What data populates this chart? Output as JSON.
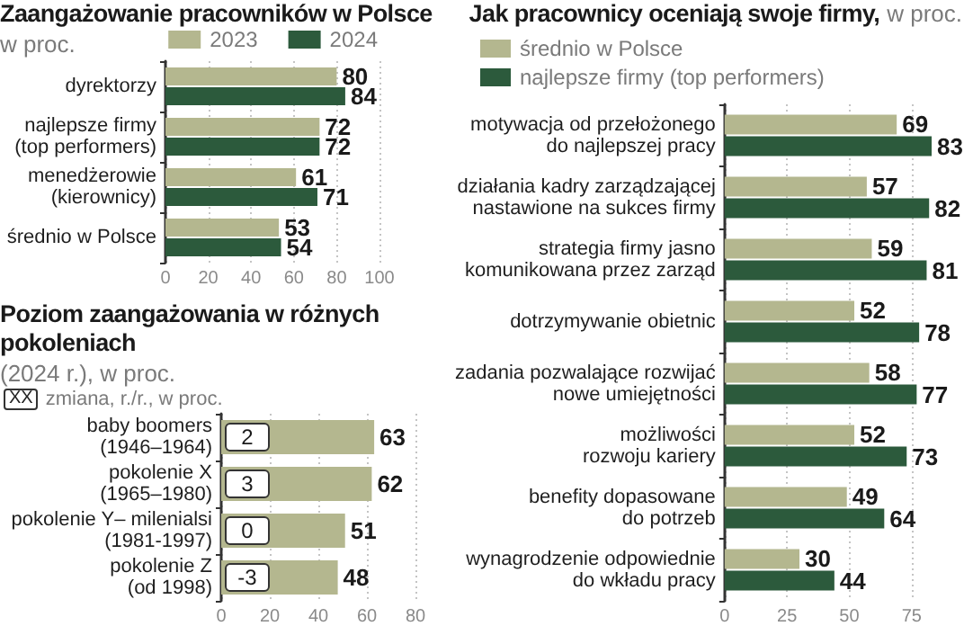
{
  "chart_data": [
    {
      "type": "bar",
      "orientation": "horizontal",
      "title": "Zaangażowanie pracowników w Polsce",
      "subtitle": "w proc.",
      "categories": [
        "dyrektorzy",
        "najlepsze firmy\n(top performers)",
        "menedżerowie\n(kierownicy)",
        "średnio w Polsce"
      ],
      "series": [
        {
          "name": "2023",
          "color": "#b4b78f",
          "values": [
            80,
            72,
            61,
            53
          ]
        },
        {
          "name": "2024",
          "color": "#2c5a3c",
          "values": [
            84,
            72,
            71,
            54
          ]
        }
      ],
      "xlim": [
        0,
        100
      ],
      "xticks": [
        0,
        20,
        40,
        60,
        80,
        100
      ],
      "grid": "x",
      "legend": "top right",
      "data_labels": true
    },
    {
      "type": "bar",
      "orientation": "horizontal",
      "title": "Poziom zaangażowania w różnych pokoleniach",
      "subtitle": "(2024 r.), w proc.",
      "categories": [
        "baby boomers\n(1946–1964)",
        "pokolenie X\n(1965–1980)",
        "pokolenie Y– milenialsi\n(1981-1997)",
        "pokolenie Z\n(od 1998)"
      ],
      "values": [
        63,
        62,
        51,
        48
      ],
      "color": "#b4b78f",
      "xlim": [
        0,
        80
      ],
      "xticks": [
        0,
        20,
        40,
        60,
        80
      ],
      "grid": "x",
      "data_labels": true,
      "annotations": [
        "XX",
        "zmiana, r./r., w proc.",
        {
          "text": "2",
          "y": "baby boomers\n(1946–1964)"
        },
        {
          "text": "3",
          "y": "pokolenie X\n(1965–1980)"
        },
        {
          "text": "0",
          "y": "pokolenie Y– milenialsi\n(1981-1997)"
        },
        {
          "text": "-3",
          "y": "pokolenie Z\n(od 1998)"
        }
      ]
    },
    {
      "type": "bar",
      "orientation": "horizontal",
      "title": "Jak pracownicy oceniają swoje firmy,",
      "subtitle": "w proc.",
      "categories": [
        "motywacja od przełożonego\ndo najlepszej pracy",
        "działania kadry zarządzającej\nnastawione na sukces firmy",
        "strategia firmy jasno\nkomunikowana przez zarząd",
        "dotrzymywanie obietnic",
        "zadania pozwalające rozwijać\nnowe umiejętności",
        "możliwości\nrozwoju kariery",
        "benefity dopasowane\ndo potrzeb",
        "wynagrodzenie odpowiednie\ndo wkładu pracy"
      ],
      "series": [
        {
          "name": "średnio w Polsce",
          "color": "#b4b78f",
          "values": [
            69,
            57,
            59,
            52,
            58,
            52,
            49,
            30
          ]
        },
        {
          "name": "najlepsze firmy (top performers)",
          "color": "#2c5a3c",
          "values": [
            83,
            82,
            81,
            78,
            77,
            73,
            64,
            44
          ]
        }
      ],
      "xlim": [
        0,
        83
      ],
      "xticks": [
        0,
        25,
        50,
        75
      ],
      "grid": "x",
      "legend": "top left",
      "data_labels": true
    }
  ]
}
